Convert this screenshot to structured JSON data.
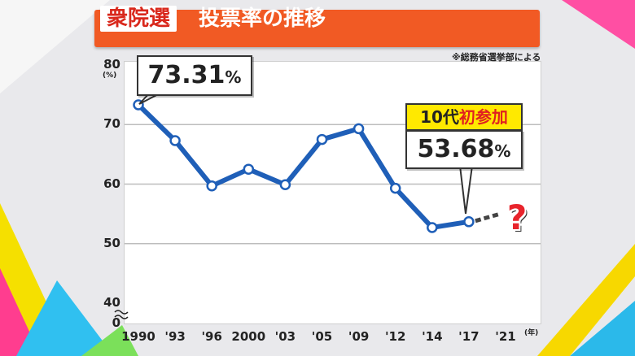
{
  "title": {
    "tag": "衆院選",
    "main": "投票率の推移"
  },
  "source": "※総務省選挙部による",
  "y_unit": "(%)",
  "x_unit": "(年)",
  "callout_first": {
    "value": "73.31",
    "unit": "%"
  },
  "callout_last": {
    "badge_prefix": "10代",
    "badge_highlight": "初参加",
    "value": "53.68",
    "unit": "%"
  },
  "future_marker": "?",
  "colors": {
    "line": "#1f5fb8",
    "title_bar": "#f15a24",
    "badge": "#ffe900"
  },
  "chart_data": {
    "type": "line",
    "title": "投票率の推移",
    "xlabel": "(年)",
    "ylabel": "(%)",
    "ylim": [
      40,
      80
    ],
    "y_ticks": [
      "80",
      "70",
      "60",
      "50",
      "40",
      "0"
    ],
    "y_axis_break": true,
    "x_ticks": [
      "1990",
      "'93",
      "'96",
      "2000",
      "'03",
      "'05",
      "'09",
      "'12",
      "'14",
      "'17",
      "'21"
    ],
    "series": [
      {
        "values": [
          73.31,
          67.3,
          59.7,
          62.5,
          59.9,
          67.5,
          69.3,
          59.3,
          52.7,
          53.68
        ],
        "x_index": [
          0,
          1,
          2,
          3,
          4,
          5,
          6,
          7,
          8,
          9
        ]
      }
    ],
    "projection": {
      "from_index": 9,
      "to_index": 10,
      "style": "dashed",
      "value": "unknown"
    },
    "grid": true
  }
}
